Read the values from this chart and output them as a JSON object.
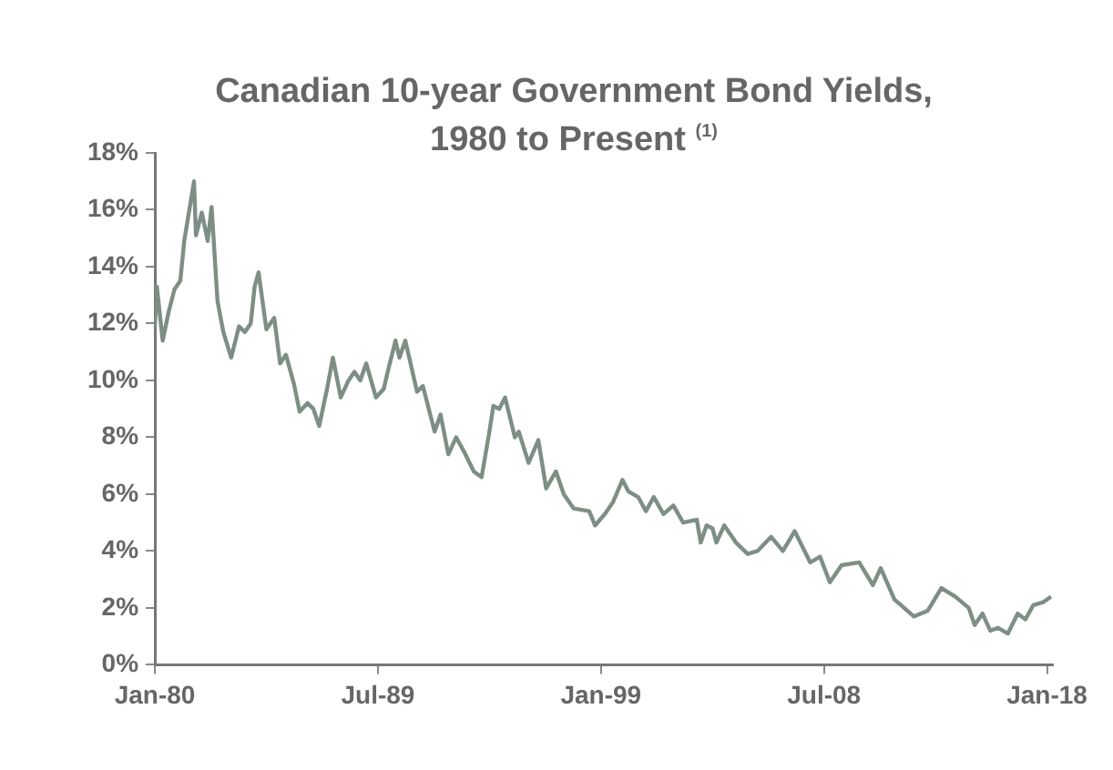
{
  "chart_data": {
    "type": "line",
    "title": "Canadian 10-year Government Bond Yields, 1980 to Present $^{(1)}$",
    "series": [
      {
        "color": "#7d8f84",
        "x": [
          "1980-01",
          "1980-02",
          "1980-05",
          "1980-08",
          "1980-11",
          "1981-02",
          "1981-04",
          "1981-09",
          "1981-10",
          "1982-01",
          "1982-04",
          "1982-06",
          "1982-09",
          "1982-12",
          "1983-04",
          "1983-08",
          "1983-11",
          "1984-02",
          "1984-04",
          "1984-06",
          "1984-08",
          "1984-10",
          "1985-02",
          "1985-05",
          "1985-08",
          "1985-12",
          "1986-03",
          "1986-07",
          "1986-10",
          "1987-01",
          "1987-05",
          "1987-08",
          "1987-12",
          "1988-04",
          "1988-07",
          "1988-10",
          "1989-01",
          "1989-06",
          "1989-10",
          "1989-12",
          "1990-04",
          "1990-06",
          "1990-09",
          "1990-12",
          "1991-03",
          "1991-06",
          "1991-12",
          "1992-03",
          "1992-07",
          "1992-11",
          "1993-03",
          "1993-08",
          "1993-12",
          "1994-04",
          "1994-06",
          "1994-09",
          "1994-12",
          "1995-05",
          "1995-07",
          "1995-12",
          "1996-05",
          "1996-09",
          "1997-02",
          "1997-06",
          "1997-11",
          "1998-07",
          "1998-10",
          "1999-03",
          "1999-07",
          "1999-12",
          "2000-03",
          "2000-08",
          "2000-12",
          "2001-04",
          "2001-09",
          "2002-02",
          "2002-07",
          "2003-02",
          "2003-04",
          "2003-07",
          "2003-10",
          "2003-12",
          "2004-04",
          "2004-10",
          "2005-04",
          "2005-09",
          "2006-04",
          "2006-10",
          "2007-04",
          "2007-12",
          "2008-05",
          "2008-10",
          "2009-04",
          "2010-01",
          "2010-08",
          "2010-12",
          "2011-07",
          "2012-05",
          "2012-12",
          "2013-07",
          "2014-02",
          "2014-09",
          "2014-12",
          "2015-04",
          "2015-08",
          "2015-12",
          "2016-05",
          "2016-10",
          "2017-02",
          "2017-06",
          "2017-11",
          "2018-03"
        ],
        "values": [
          11.9,
          13.3,
          11.4,
          12.4,
          13.2,
          13.5,
          14.9,
          17.0,
          15.1,
          15.9,
          14.9,
          16.1,
          12.8,
          11.7,
          10.8,
          11.9,
          11.7,
          12.0,
          13.3,
          13.8,
          12.8,
          11.8,
          12.2,
          10.6,
          10.9,
          9.9,
          8.9,
          9.2,
          9.0,
          8.4,
          9.7,
          10.8,
          9.4,
          10.0,
          10.3,
          10.0,
          10.6,
          9.4,
          9.7,
          10.3,
          11.4,
          10.8,
          11.4,
          10.5,
          9.6,
          9.8,
          8.2,
          8.8,
          7.4,
          8.0,
          7.5,
          6.8,
          6.6,
          8.2,
          9.1,
          9.0,
          9.4,
          8.0,
          8.2,
          7.1,
          7.9,
          6.2,
          6.8,
          6.0,
          5.5,
          5.4,
          4.9,
          5.3,
          5.7,
          6.5,
          6.1,
          5.9,
          5.4,
          5.9,
          5.3,
          5.6,
          5.0,
          5.1,
          4.3,
          4.9,
          4.8,
          4.3,
          4.9,
          4.3,
          3.9,
          4.0,
          4.5,
          4.0,
          4.7,
          3.6,
          3.8,
          2.9,
          3.5,
          3.6,
          2.8,
          3.4,
          2.3,
          1.7,
          1.9,
          2.7,
          2.4,
          2.0,
          1.4,
          1.8,
          1.2,
          1.3,
          1.1,
          1.8,
          1.6,
          2.1,
          2.2,
          2.4
        ]
      }
    ],
    "xlim": [
      "1980-01",
      "2018-04"
    ],
    "xticks": [
      {
        "value": "1980-01",
        "label": "Jan-80"
      },
      {
        "value": "1989-07",
        "label": "Jul-89"
      },
      {
        "value": "1999-01",
        "label": "Jan-99"
      },
      {
        "value": "2008-07",
        "label": "Jul-08"
      },
      {
        "value": "2018-01",
        "label": "Jan-18"
      }
    ],
    "ylim": [
      0,
      18
    ],
    "yticks": [
      {
        "value": 0,
        "label": "0%"
      },
      {
        "value": 2,
        "label": "2%"
      },
      {
        "value": 4,
        "label": "4%"
      },
      {
        "value": 6,
        "label": "6%"
      },
      {
        "value": 8,
        "label": "8%"
      },
      {
        "value": 10,
        "label": "10%"
      },
      {
        "value": 12,
        "label": "12%"
      },
      {
        "value": 14,
        "label": "14%"
      },
      {
        "value": 16,
        "label": "16%"
      },
      {
        "value": 18,
        "label": "18%"
      }
    ],
    "line_style": "solid"
  }
}
